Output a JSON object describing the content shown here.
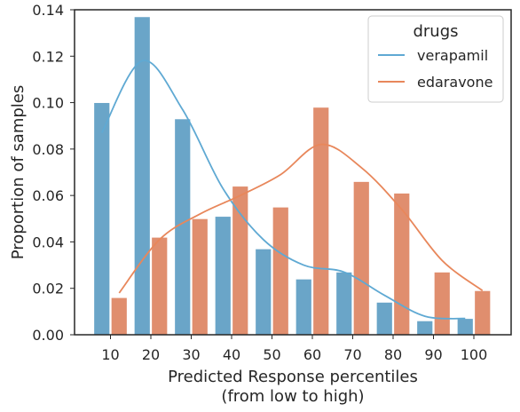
{
  "chart_data": {
    "type": "bar",
    "xlabel_line1": "Predicted Response percentiles",
    "xlabel_line2": "(from low to high)",
    "ylabel": "Proportion of samples",
    "ylim": [
      0,
      0.14
    ],
    "yticks": [
      "0.00",
      "0.02",
      "0.04",
      "0.06",
      "0.08",
      "0.10",
      "0.12",
      "0.14"
    ],
    "categories": [
      "10",
      "20",
      "30",
      "40",
      "50",
      "60",
      "70",
      "80",
      "90",
      "100"
    ],
    "legend": {
      "title": "drugs",
      "position": "top-right"
    },
    "grid": false,
    "series": [
      {
        "name": "verapamil",
        "color": "#6aa5c8",
        "line_color": "#5fa9d3",
        "values": [
          0.1,
          0.137,
          0.093,
          0.051,
          0.037,
          0.024,
          0.027,
          0.014,
          0.006,
          0.007
        ],
        "kde": [
          0.087,
          0.118,
          0.097,
          0.063,
          0.041,
          0.03,
          0.027,
          0.017,
          0.008,
          0.007
        ]
      },
      {
        "name": "edaravone",
        "color": "#e08e6e",
        "line_color": "#e8875b",
        "values": [
          0.016,
          0.042,
          0.05,
          0.064,
          0.055,
          0.098,
          0.066,
          0.061,
          0.027,
          0.019
        ],
        "kde": [
          0.018,
          0.041,
          0.052,
          0.06,
          0.069,
          0.082,
          0.072,
          0.054,
          0.032,
          0.019
        ]
      }
    ]
  }
}
